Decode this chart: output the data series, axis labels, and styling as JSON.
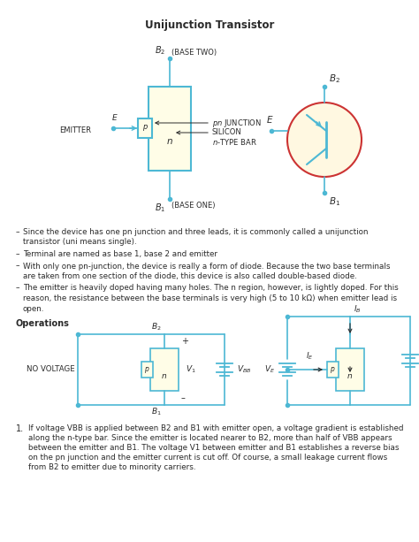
{
  "title": "Unijunction Transistor",
  "background": "#ffffff",
  "cyan": "#4db8d4",
  "light_yellow": "#ffffdd",
  "bullet_points": [
    "Since the device has one pn junction and three leads, it is commonly called a unijunction transistor (uni means single).",
    "Terminal are named as base 1, base 2 and emitter",
    "With only one pn-junction, the device is really a form of diode. Because the two base terminals are taken from one section of the diode, this device is also called double-based diode.",
    "The emitter is heavily doped having many holes. The n region, however, is lightly doped. For this reason, the resistance between the base terminals is very high (5 to 10 kΩ) when emitter lead is open."
  ],
  "operations_title": "Operations",
  "numbered_text": "If voltage VBB is applied between B2 and B1 with emitter open, a voltage gradient is established along the n-type bar. Since the emitter is located nearer to B2, more than half of VBB appears between the emitter and B1. The voltage V1 between emitter and B1 establishes a reverse bias on the pn junction and the emitter current is cut off. Of course, a small leakage current flows from B2 to emitter due to minority carriers."
}
